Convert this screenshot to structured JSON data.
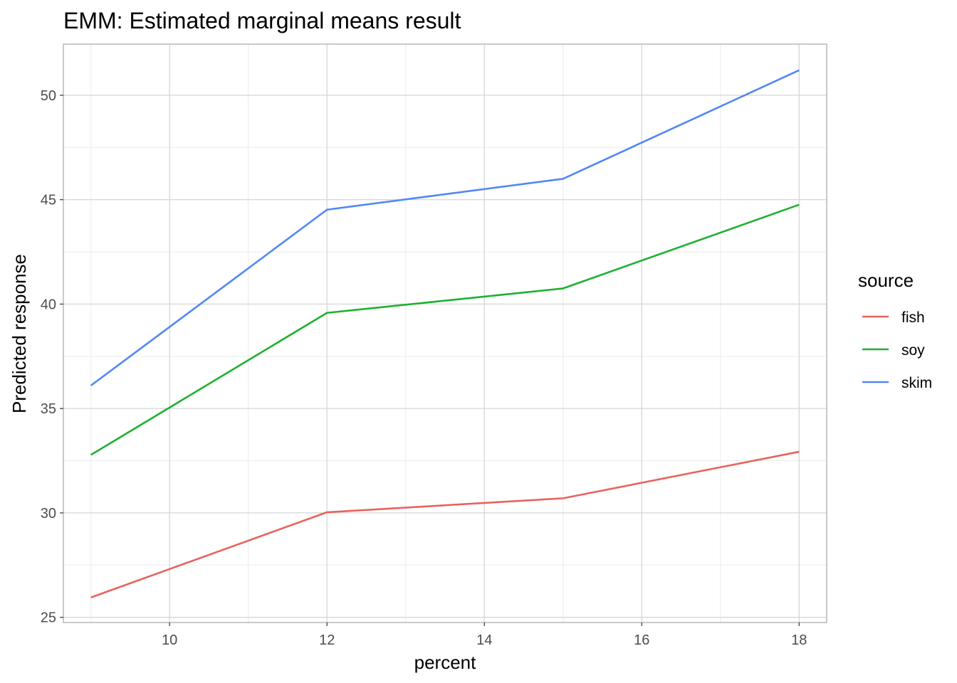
{
  "chart_data": {
    "type": "line",
    "title": "EMM: Estimated marginal means result",
    "xlabel": "percent",
    "ylabel": "Predicted response",
    "xlim": [
      8.65,
      18.35
    ],
    "ylim": [
      24.75,
      52.45
    ],
    "x_ticks": [
      10,
      12,
      14,
      16,
      18
    ],
    "y_ticks": [
      25,
      30,
      35,
      40,
      45,
      50
    ],
    "x_minor": [
      9,
      11,
      13,
      15,
      17
    ],
    "y_minor": [
      27.5,
      32.5,
      37.5,
      42.5,
      47.5
    ],
    "grid": true,
    "legend_title": "source",
    "legend_position": "right",
    "x": [
      9,
      12,
      15,
      18
    ],
    "series": [
      {
        "name": "fish",
        "color": "#e8635e",
        "values": [
          25.95,
          30.03,
          30.7,
          32.93
        ]
      },
      {
        "name": "soy",
        "color": "#1fb032",
        "values": [
          32.78,
          39.58,
          40.75,
          44.76
        ]
      },
      {
        "name": "skim",
        "color": "#5287f5",
        "values": [
          36.1,
          44.52,
          46.0,
          51.2
        ]
      }
    ]
  }
}
